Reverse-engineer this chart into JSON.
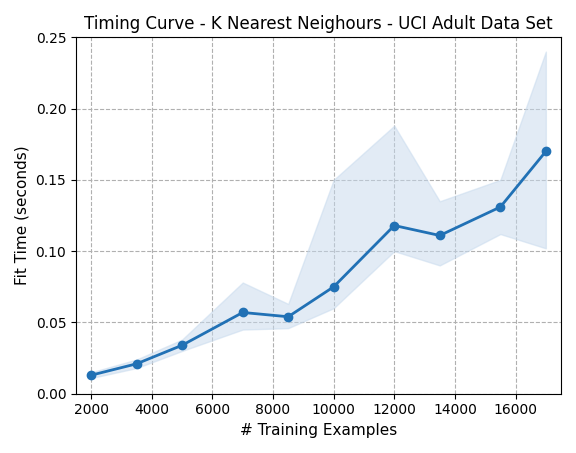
{
  "title": "Timing Curve - K Nearest Neighours - UCI Adult Data Set",
  "xlabel": "# Training Examples",
  "ylabel": "Fit Time (seconds)",
  "x": [
    2000,
    3500,
    5000,
    7000,
    8500,
    10000,
    12000,
    13500,
    15500,
    17000
  ],
  "y_mean": [
    0.013,
    0.021,
    0.034,
    0.057,
    0.054,
    0.075,
    0.118,
    0.111,
    0.131,
    0.17
  ],
  "y_upper": [
    0.015,
    0.024,
    0.038,
    0.078,
    0.063,
    0.15,
    0.188,
    0.135,
    0.15,
    0.24
  ],
  "y_lower": [
    0.011,
    0.018,
    0.03,
    0.045,
    0.046,
    0.06,
    0.1,
    0.09,
    0.112,
    0.102
  ],
  "line_color": "#2171b5",
  "fill_color": "#c6d9ed",
  "fill_alpha": 0.5,
  "ylim": [
    0.0,
    0.25
  ],
  "xlim": [
    1500,
    17500
  ],
  "yticks": [
    0.0,
    0.05,
    0.1,
    0.15,
    0.2,
    0.25
  ],
  "xticks": [
    2000,
    4000,
    6000,
    8000,
    10000,
    12000,
    14000,
    16000
  ],
  "grid_color": "#b0b0b0",
  "grid_linestyle": "--",
  "marker": "o",
  "markersize": 6,
  "linewidth": 2,
  "figsize": [
    5.76,
    4.53
  ],
  "dpi": 100,
  "title_fontsize": 12,
  "label_fontsize": 11
}
